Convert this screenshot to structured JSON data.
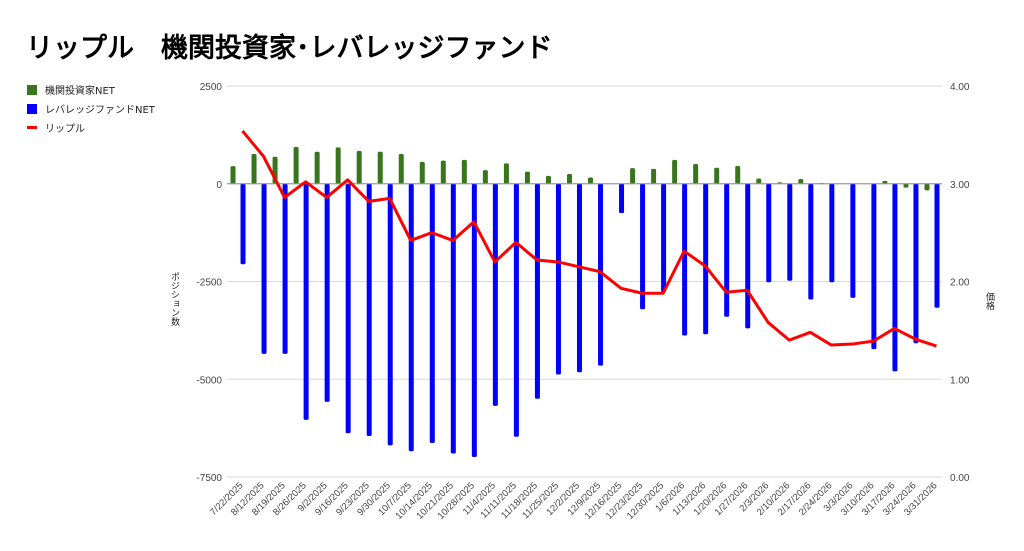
{
  "title": "リップル　機関投資家･レバレッジファンド",
  "legend": [
    {
      "label": "機関投資家NET",
      "color": "#38761d"
    },
    {
      "label": "レバレッジファンドNET",
      "color": "#0000ff"
    },
    {
      "label": "リップル",
      "color": "#ff0000"
    }
  ],
  "chart_data": {
    "type": "bar",
    "title": "リップル　機関投資家･レバレッジファンド",
    "ylabel": "ポジション数",
    "y2label": "価格",
    "ylim": [
      -7500,
      2500
    ],
    "y2lim": [
      0,
      4
    ],
    "yticks": [
      "2500",
      "0",
      "-2500",
      "-5000",
      "-7500"
    ],
    "y2ticks": [
      "4.00",
      "3.00",
      "2.00",
      "1.00",
      "0.00"
    ],
    "grid": true,
    "legend_position": "left",
    "categories": [
      "7/22/2025",
      "8/12/2025",
      "8/19/2025",
      "8/26/2025",
      "9/2/2025",
      "9/16/2025",
      "9/23/2025",
      "9/30/2025",
      "10/7/2025",
      "10/14/2025",
      "10/21/2025",
      "10/28/2025",
      "11/4/2025",
      "11/11/2025",
      "11/18/2025",
      "11/25/2025",
      "12/2/2025",
      "12/9/2025",
      "12/16/2025",
      "12/23/2025",
      "12/30/2025",
      "1/6/2026",
      "1/13/2026",
      "1/20/2026",
      "1/27/2026",
      "2/3/2026",
      "2/10/2026",
      "2/17/2026",
      "2/24/2026",
      "3/3/2026",
      "3/10/2026",
      "3/17/2026",
      "3/24/2026",
      "3/31/2026"
    ],
    "series": [
      {
        "name": "機関投資家NET",
        "type": "bar",
        "axis": "left",
        "color": "#38761d",
        "values": [
          450,
          760,
          690,
          940,
          820,
          930,
          840,
          820,
          760,
          560,
          590,
          610,
          350,
          520,
          310,
          200,
          250,
          160,
          0,
          400,
          380,
          610,
          505,
          410,
          455,
          135,
          35,
          120,
          15,
          0,
          0,
          75,
          -100,
          -170
        ]
      },
      {
        "name": "レバレッジファンドNET",
        "type": "bar",
        "axis": "left",
        "color": "#0000ff",
        "values": [
          -2060,
          -4350,
          -4350,
          -6040,
          -5580,
          -6380,
          -6450,
          -6690,
          -6840,
          -6630,
          -6900,
          -6990,
          -5680,
          -6470,
          -5500,
          -4880,
          -4820,
          -4650,
          -750,
          -3210,
          -2770,
          -3880,
          -3850,
          -3400,
          -3700,
          -2520,
          -2480,
          -2960,
          -2520,
          -2920,
          -4230,
          -4800,
          -4080,
          -3170
        ]
      },
      {
        "name": "リップル",
        "type": "line",
        "axis": "right",
        "color": "#ff0000",
        "values": [
          3.54,
          3.28,
          2.86,
          3.02,
          2.86,
          3.04,
          2.82,
          2.85,
          2.42,
          2.5,
          2.42,
          2.61,
          2.2,
          2.4,
          2.22,
          2.2,
          2.15,
          2.1,
          1.93,
          1.88,
          1.88,
          2.31,
          2.16,
          1.89,
          1.91,
          1.58,
          1.4,
          1.48,
          1.35,
          1.36,
          1.39,
          1.52,
          1.41,
          1.34
        ]
      }
    ]
  }
}
